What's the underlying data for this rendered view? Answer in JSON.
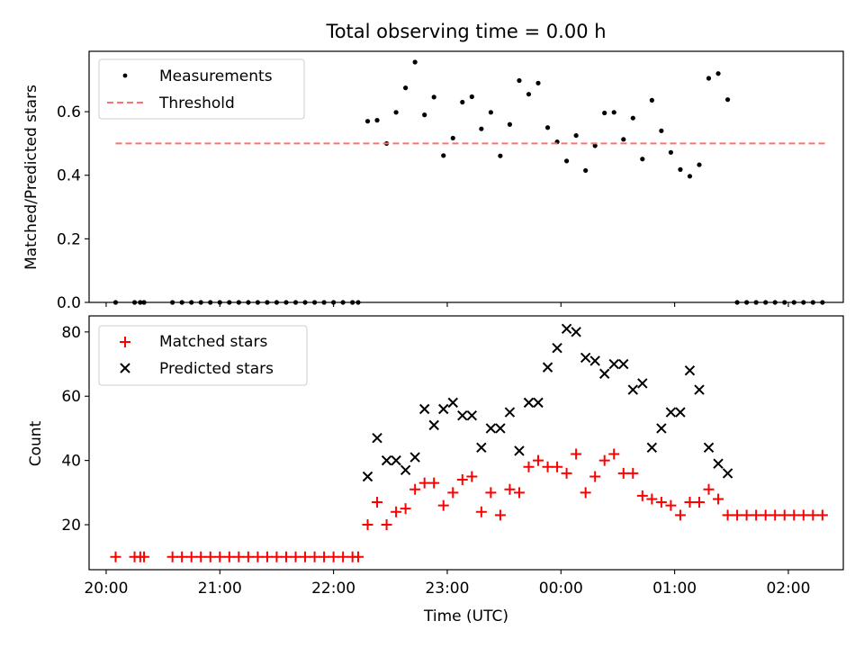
{
  "chart_data": {
    "title": "Total observing time = 0.00 h",
    "xlabel": "Time (UTC)",
    "x_tick_labels": [
      "20:00",
      "21:00",
      "22:00",
      "23:00",
      "00:00",
      "01:00",
      "02:00"
    ],
    "x_ticks_minutes": [
      0,
      60,
      120,
      180,
      240,
      300,
      360
    ],
    "xlim_minutes": [
      -9,
      389
    ],
    "panels": [
      {
        "type": "scatter",
        "ylabel": "Matched/Predicted stars",
        "ylim": [
          0,
          0.79
        ],
        "y_ticks": [
          0.0,
          0.2,
          0.4,
          0.6
        ],
        "y_tick_labels": [
          "0.0",
          "0.2",
          "0.4",
          "0.6"
        ],
        "legend": {
          "placement": "upper-left",
          "entries": [
            "Measurements",
            "Threshold"
          ]
        },
        "series": [
          {
            "name": "Measurements",
            "marker": "dot",
            "color": "#000000",
            "points": [
              [
                5,
                0
              ],
              [
                15,
                0
              ],
              [
                18,
                0
              ],
              [
                20,
                0
              ],
              [
                35,
                0
              ],
              [
                40,
                0
              ],
              [
                45,
                0
              ],
              [
                50,
                0
              ],
              [
                55,
                0
              ],
              [
                60,
                0
              ],
              [
                65,
                0
              ],
              [
                70,
                0
              ],
              [
                75,
                0
              ],
              [
                80,
                0
              ],
              [
                85,
                0
              ],
              [
                90,
                0
              ],
              [
                95,
                0
              ],
              [
                100,
                0
              ],
              [
                105,
                0
              ],
              [
                110,
                0
              ],
              [
                115,
                0
              ],
              [
                120,
                0
              ],
              [
                125,
                0
              ],
              [
                130,
                0
              ],
              [
                133,
                0
              ],
              [
                138,
                0.57
              ],
              [
                143,
                0.573
              ],
              [
                148,
                0.5
              ],
              [
                153,
                0.598
              ],
              [
                158,
                0.675
              ],
              [
                163,
                0.756
              ],
              [
                168,
                0.59
              ],
              [
                173,
                0.646
              ],
              [
                178,
                0.462
              ],
              [
                183,
                0.517
              ],
              [
                188,
                0.63
              ],
              [
                193,
                0.647
              ],
              [
                198,
                0.546
              ],
              [
                203,
                0.598
              ],
              [
                208,
                0.461
              ],
              [
                213,
                0.56
              ],
              [
                218,
                0.698
              ],
              [
                223,
                0.655
              ],
              [
                228,
                0.69
              ],
              [
                233,
                0.55
              ],
              [
                238,
                0.505
              ],
              [
                243,
                0.445
              ],
              [
                248,
                0.525
              ],
              [
                253,
                0.415
              ],
              [
                258,
                0.493
              ],
              [
                263,
                0.596
              ],
              [
                268,
                0.598
              ],
              [
                273,
                0.513
              ],
              [
                278,
                0.58
              ],
              [
                283,
                0.451
              ],
              [
                288,
                0.636
              ],
              [
                293,
                0.54
              ],
              [
                298,
                0.472
              ],
              [
                303,
                0.418
              ],
              [
                308,
                0.397
              ],
              [
                313,
                0.433
              ],
              [
                318,
                0.705
              ],
              [
                323,
                0.72
              ],
              [
                328,
                0.638
              ],
              [
                333,
                0
              ],
              [
                338,
                0
              ],
              [
                343,
                0
              ],
              [
                348,
                0
              ],
              [
                353,
                0
              ],
              [
                358,
                0
              ],
              [
                363,
                0
              ],
              [
                368,
                0
              ],
              [
                373,
                0
              ],
              [
                378,
                0
              ]
            ]
          },
          {
            "name": "Threshold",
            "style": "dashed",
            "color": "#ff7070",
            "points": [
              [
                5,
                0.5
              ],
              [
                380,
                0.5
              ]
            ]
          }
        ]
      },
      {
        "type": "scatter",
        "ylabel": "Count",
        "ylim": [
          6,
          85
        ],
        "y_ticks": [
          20,
          40,
          60,
          80
        ],
        "y_tick_labels": [
          "20",
          "40",
          "60",
          "80"
        ],
        "legend": {
          "placement": "upper-left",
          "entries": [
            "Matched stars",
            "Predicted stars"
          ]
        },
        "series": [
          {
            "name": "Matched stars",
            "marker": "plus",
            "color": "#ff0000",
            "points": [
              [
                5,
                10
              ],
              [
                15,
                10
              ],
              [
                18,
                10
              ],
              [
                20,
                10
              ],
              [
                35,
                10
              ],
              [
                40,
                10
              ],
              [
                45,
                10
              ],
              [
                50,
                10
              ],
              [
                55,
                10
              ],
              [
                60,
                10
              ],
              [
                65,
                10
              ],
              [
                70,
                10
              ],
              [
                75,
                10
              ],
              [
                80,
                10
              ],
              [
                85,
                10
              ],
              [
                90,
                10
              ],
              [
                95,
                10
              ],
              [
                100,
                10
              ],
              [
                105,
                10
              ],
              [
                110,
                10
              ],
              [
                115,
                10
              ],
              [
                120,
                10
              ],
              [
                125,
                10
              ],
              [
                130,
                10
              ],
              [
                133,
                10
              ],
              [
                138,
                20
              ],
              [
                143,
                27
              ],
              [
                148,
                20
              ],
              [
                153,
                24
              ],
              [
                158,
                25
              ],
              [
                163,
                31
              ],
              [
                168,
                33
              ],
              [
                173,
                33
              ],
              [
                178,
                26
              ],
              [
                183,
                30
              ],
              [
                188,
                34
              ],
              [
                193,
                35
              ],
              [
                198,
                24
              ],
              [
                203,
                30
              ],
              [
                208,
                23
              ],
              [
                213,
                31
              ],
              [
                218,
                30
              ],
              [
                223,
                38
              ],
              [
                228,
                40
              ],
              [
                233,
                38
              ],
              [
                238,
                38
              ],
              [
                243,
                36
              ],
              [
                248,
                42
              ],
              [
                253,
                30
              ],
              [
                258,
                35
              ],
              [
                263,
                40
              ],
              [
                268,
                42
              ],
              [
                273,
                36
              ],
              [
                278,
                36
              ],
              [
                283,
                29
              ],
              [
                288,
                28
              ],
              [
                293,
                27
              ],
              [
                298,
                26
              ],
              [
                303,
                23
              ],
              [
                308,
                27
              ],
              [
                313,
                27
              ],
              [
                318,
                31
              ],
              [
                323,
                28
              ],
              [
                328,
                23
              ],
              [
                333,
                23
              ],
              [
                338,
                23
              ],
              [
                343,
                23
              ],
              [
                348,
                23
              ],
              [
                353,
                23
              ],
              [
                358,
                23
              ],
              [
                363,
                23
              ],
              [
                368,
                23
              ],
              [
                373,
                23
              ],
              [
                378,
                23
              ]
            ]
          },
          {
            "name": "Predicted stars",
            "marker": "x",
            "color": "#000000",
            "points": [
              [
                138,
                35
              ],
              [
                143,
                47
              ],
              [
                148,
                40
              ],
              [
                153,
                40
              ],
              [
                158,
                37
              ],
              [
                163,
                41
              ],
              [
                168,
                56
              ],
              [
                173,
                51
              ],
              [
                178,
                56
              ],
              [
                183,
                58
              ],
              [
                188,
                54
              ],
              [
                193,
                54
              ],
              [
                198,
                44
              ],
              [
                203,
                50
              ],
              [
                208,
                50
              ],
              [
                213,
                55
              ],
              [
                218,
                43
              ],
              [
                223,
                58
              ],
              [
                228,
                58
              ],
              [
                233,
                69
              ],
              [
                238,
                75
              ],
              [
                243,
                81
              ],
              [
                248,
                80
              ],
              [
                253,
                72
              ],
              [
                258,
                71
              ],
              [
                263,
                67
              ],
              [
                268,
                70
              ],
              [
                273,
                70
              ],
              [
                278,
                62
              ],
              [
                283,
                64
              ],
              [
                288,
                44
              ],
              [
                293,
                50
              ],
              [
                298,
                55
              ],
              [
                303,
                55
              ],
              [
                308,
                68
              ],
              [
                313,
                62
              ],
              [
                318,
                44
              ],
              [
                323,
                39
              ],
              [
                328,
                36
              ]
            ]
          }
        ]
      }
    ]
  }
}
